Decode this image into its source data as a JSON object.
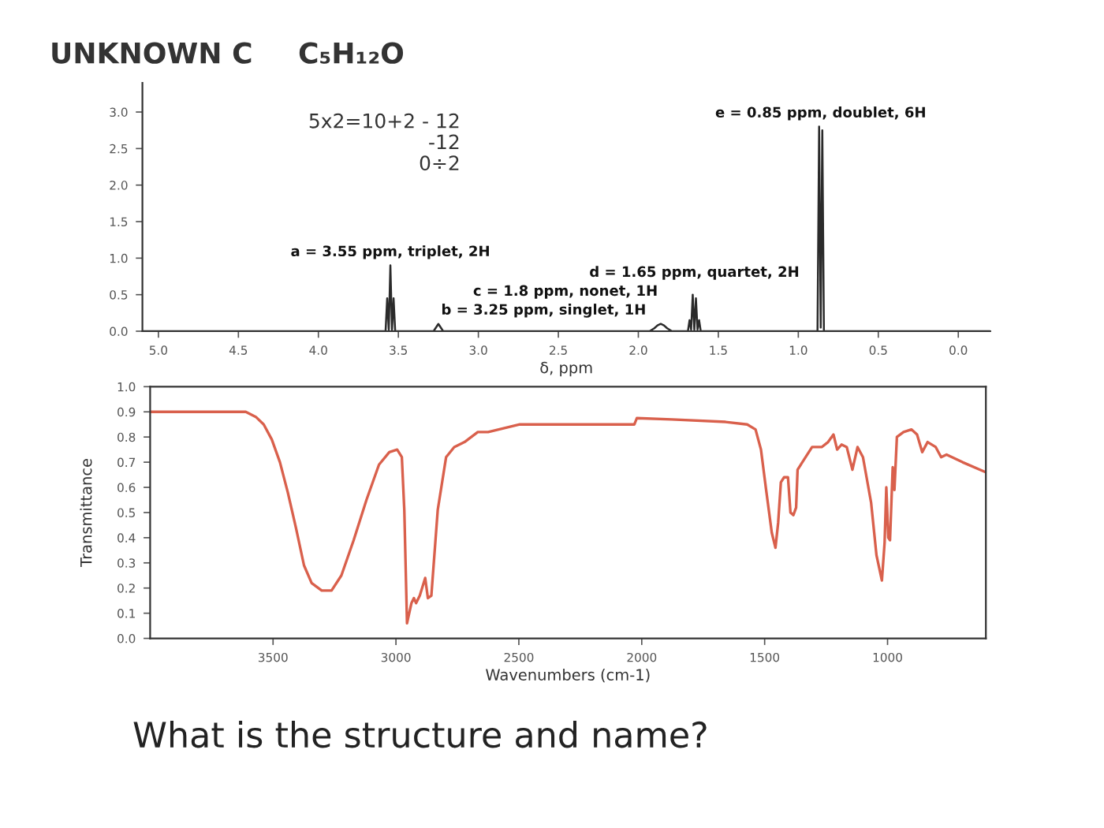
{
  "chart_data": [
    {
      "type": "line",
      "title": "UNKNOWN C",
      "subtitle": "C₅H₁₂O",
      "xlabel": "δ, ppm",
      "xlim": [
        5.1,
        -0.2
      ],
      "xticks": [
        {
          "value": 5,
          "label": "5.0"
        },
        4.5,
        {
          "value": 4,
          "label": "4.0"
        },
        3.5,
        {
          "value": 3,
          "label": "3.0"
        },
        2.5,
        {
          "value": 2,
          "label": "2.0"
        },
        1.5,
        {
          "value": 1,
          "label": "1.0"
        },
        0.5,
        {
          "value": 0,
          "label": "0.0"
        }
      ],
      "ylim": [
        0,
        3.4
      ],
      "yticks": [
        {
          "value": 0,
          "label": "0.0"
        },
        0.5,
        {
          "value": 1,
          "label": "1.0"
        },
        1.5,
        {
          "value": 2,
          "label": "2.0"
        },
        2.5,
        {
          "value": 3,
          "label": "3.0"
        }
      ],
      "series": [
        {
          "color": "#2b2b2b",
          "x": [
            5.1,
            3.58,
            3.57,
            3.56,
            3.55,
            3.54,
            3.53,
            3.52,
            3.28,
            3.25,
            3.22,
            1.93,
            1.9,
            1.88,
            1.86,
            1.84,
            1.82,
            1.79,
            1.69,
            1.68,
            1.67,
            1.66,
            1.65,
            1.64,
            1.63,
            1.62,
            1.61,
            0.88,
            0.87,
            0.86,
            0.85,
            0.84,
            -0.2
          ],
          "values": [
            0,
            0,
            0.45,
            0.02,
            0.9,
            0.02,
            0.45,
            0,
            0,
            0.1,
            0,
            0,
            0.04,
            0.08,
            0.1,
            0.08,
            0.04,
            0,
            0,
            0.15,
            0.02,
            0.5,
            0.02,
            0.45,
            0.02,
            0.15,
            0,
            0,
            2.8,
            0.05,
            2.75,
            0,
            0
          ]
        }
      ],
      "annotations": [
        {
          "text": "e = 0.85 ppm, doublet, 6H",
          "x": 0.86,
          "y": 2.8
        },
        {
          "text": "a = 3.55 ppm, triplet, 2H",
          "x": 3.55,
          "y": 0.9
        },
        {
          "text": "b = 3.25 ppm, singlet, 1H",
          "x": 3.25,
          "y": 0.1
        },
        {
          "text": "c = 1.8 ppm, nonet, 1H",
          "x": 1.86,
          "y": 0.1
        },
        {
          "text": "d = 1.65 ppm, quartet, 2H",
          "x": 1.65,
          "y": 0.5
        },
        "5x2=10+2 - 12",
        "-12",
        "0÷2"
      ]
    },
    {
      "type": "line",
      "xlabel": "Wavenumbers (cm-1)",
      "ylabel": "Transmittance",
      "xlim": [
        4000,
        600
      ],
      "xticks": [
        3500,
        3000,
        2500,
        2000,
        1500,
        1000
      ],
      "ylim": [
        0,
        1
      ],
      "yticks": [
        {
          "value": 0,
          "label": "0.0"
        },
        0.1,
        0.2,
        0.3,
        0.4,
        0.5,
        0.6,
        0.7,
        0.8,
        0.9,
        {
          "value": 1,
          "label": "1.0"
        }
      ],
      "series": [
        {
          "color": "#d9604c",
          "x": [
            4000,
            3611,
            3570,
            3538,
            3505,
            3472,
            3440,
            3407,
            3374,
            3343,
            3302,
            3262,
            3222,
            3172,
            3120,
            3069,
            3027,
            2995,
            2976,
            2966,
            2955,
            2937,
            2927,
            2918,
            2903,
            2881,
            2870,
            2856,
            2830,
            2796,
            2763,
            2721,
            2667,
            2625,
            2496,
            2388,
            2309,
            2030,
            2020,
            1878,
            1659,
            1571,
            1537,
            1515,
            1494,
            1471,
            1456,
            1445,
            1434,
            1421,
            1405,
            1395,
            1383,
            1372,
            1366,
            1340,
            1307,
            1268,
            1242,
            1220,
            1205,
            1187,
            1166,
            1143,
            1122,
            1100,
            1067,
            1045,
            1023,
            1012,
            1005,
            997,
            990,
            979,
            972,
            962,
            935,
            903,
            880,
            859,
            837,
            804,
            782,
            760,
            695,
            600
          ],
          "values": [
            0.9,
            0.9,
            0.88,
            0.85,
            0.79,
            0.7,
            0.58,
            0.44,
            0.29,
            0.22,
            0.19,
            0.19,
            0.25,
            0.39,
            0.55,
            0.69,
            0.74,
            0.75,
            0.72,
            0.51,
            0.06,
            0.14,
            0.16,
            0.14,
            0.17,
            0.24,
            0.16,
            0.17,
            0.51,
            0.72,
            0.76,
            0.78,
            0.82,
            0.82,
            0.85,
            0.85,
            0.85,
            0.85,
            0.875,
            0.87,
            0.86,
            0.85,
            0.83,
            0.75,
            0.59,
            0.42,
            0.36,
            0.46,
            0.62,
            0.64,
            0.64,
            0.5,
            0.49,
            0.52,
            0.67,
            0.71,
            0.76,
            0.76,
            0.78,
            0.81,
            0.75,
            0.77,
            0.76,
            0.67,
            0.76,
            0.72,
            0.54,
            0.33,
            0.23,
            0.38,
            0.6,
            0.4,
            0.39,
            0.68,
            0.59,
            0.8,
            0.82,
            0.83,
            0.81,
            0.74,
            0.78,
            0.76,
            0.72,
            0.73,
            0.7,
            0.66
          ]
        }
      ],
      "annotations": [
        "What is the structure and name?"
      ]
    }
  ]
}
